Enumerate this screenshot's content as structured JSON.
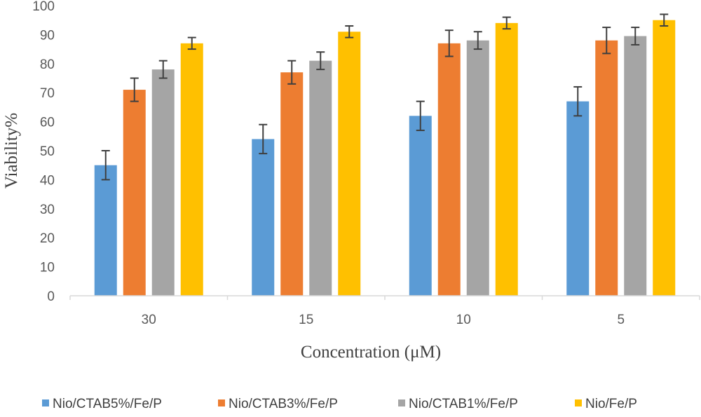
{
  "chart_data": {
    "type": "bar",
    "xlabel": "Concentration (μM)",
    "ylabel": "Viability%",
    "categories": [
      "30",
      "15",
      "10",
      "5"
    ],
    "ylim": [
      0,
      100
    ],
    "yticks": [
      0,
      10,
      20,
      30,
      40,
      50,
      60,
      70,
      80,
      90,
      100
    ],
    "grid": false,
    "legend_position": "bottom",
    "series": [
      {
        "name": "Nio/CTAB5%/Fe/P",
        "color": "#5B9BD5",
        "values": [
          45,
          54,
          62,
          67
        ],
        "errors": [
          5,
          5,
          5,
          5
        ]
      },
      {
        "name": "Nio/CTAB3%/Fe/P",
        "color": "#ED7D31",
        "values": [
          71,
          77,
          87,
          88
        ],
        "errors": [
          4,
          4,
          4.5,
          4.5
        ]
      },
      {
        "name": "Nio/CTAB1%/Fe/P",
        "color": "#A5A5A5",
        "values": [
          78,
          81,
          88,
          89.5
        ],
        "errors": [
          3,
          3,
          3,
          3
        ]
      },
      {
        "name": "Nio/Fe/P",
        "color": "#FFC000",
        "values": [
          87,
          91,
          94,
          95
        ],
        "errors": [
          2,
          2,
          2,
          2
        ]
      }
    ]
  }
}
